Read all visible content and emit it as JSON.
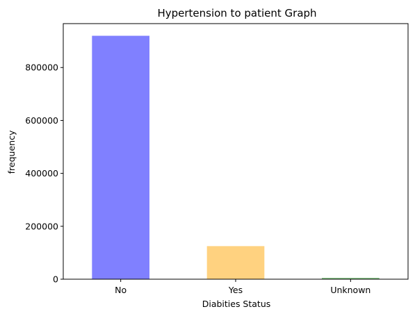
{
  "chart_data": {
    "type": "bar",
    "title": "Hypertension to patient Graph",
    "xlabel": "Diabities Status",
    "ylabel": "frequency",
    "categories": [
      "No",
      "Yes",
      "Unknown"
    ],
    "values": [
      920000,
      125000,
      5000
    ],
    "colors": [
      "#8080ff",
      "#ffd280",
      "#80c080"
    ],
    "ylim": [
      0,
      966000
    ],
    "yticks": [
      0,
      200000,
      400000,
      600000,
      800000
    ],
    "ytick_labels": [
      "0",
      "200000",
      "400000",
      "600000",
      "800000"
    ],
    "grid": false,
    "legend": "none"
  }
}
